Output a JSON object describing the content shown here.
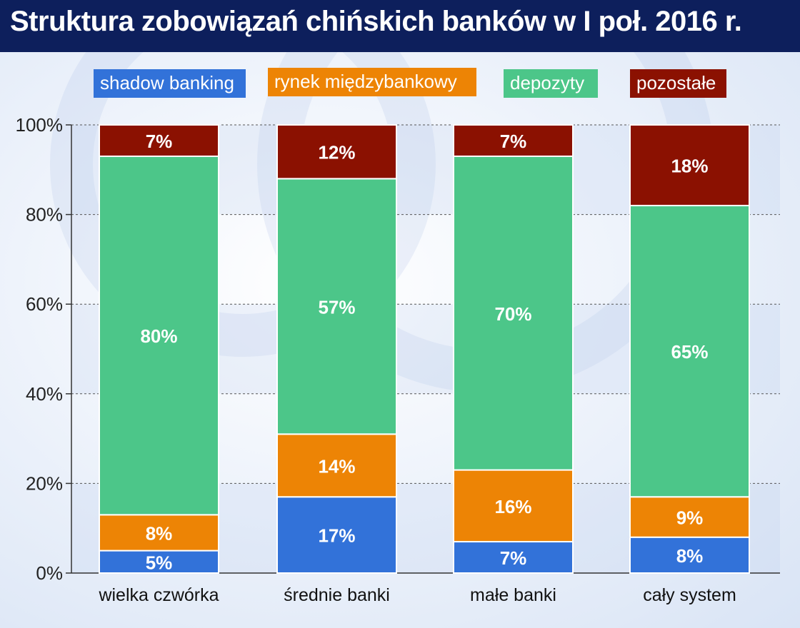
{
  "title": "Struktura zobowiązań chińskich banków w I poł. 2016 r.",
  "colors": {
    "title_bg": "#0d1f5c",
    "shadow_banking": "#3272d9",
    "rynek": "#ed8405",
    "depozyty": "#4cc689",
    "pozostale": "#8b1101"
  },
  "chart_data": {
    "type": "bar",
    "stacked": true,
    "title": "Struktura zobowiązań chińskich banków w I poł. 2016 r.",
    "categories": [
      "wielka czwórka",
      "średnie banki",
      "małe banki",
      "cały system"
    ],
    "ylim": [
      0,
      100
    ],
    "yticks": [
      "0%",
      "20%",
      "40%",
      "60%",
      "80%",
      "100%"
    ],
    "grid": true,
    "legend_position": "top",
    "series": [
      {
        "name": "shadow banking",
        "color": "#3272d9",
        "values": [
          5,
          17,
          7,
          8
        ],
        "labels": [
          "5%",
          "17%",
          "7%",
          "8%"
        ]
      },
      {
        "name": "rynek międzybankowy",
        "color": "#ed8405",
        "values": [
          8,
          14,
          16,
          9
        ],
        "labels": [
          "8%",
          "14%",
          "16%",
          "9%"
        ]
      },
      {
        "name": "depozyty",
        "color": "#4cc689",
        "values": [
          80,
          57,
          70,
          65
        ],
        "labels": [
          "80%",
          "57%",
          "70%",
          "65%"
        ]
      },
      {
        "name": "pozostałe",
        "color": "#8b1101",
        "values": [
          7,
          12,
          7,
          18
        ],
        "labels": [
          "7%",
          "12%",
          "7%",
          "18%"
        ]
      }
    ]
  }
}
